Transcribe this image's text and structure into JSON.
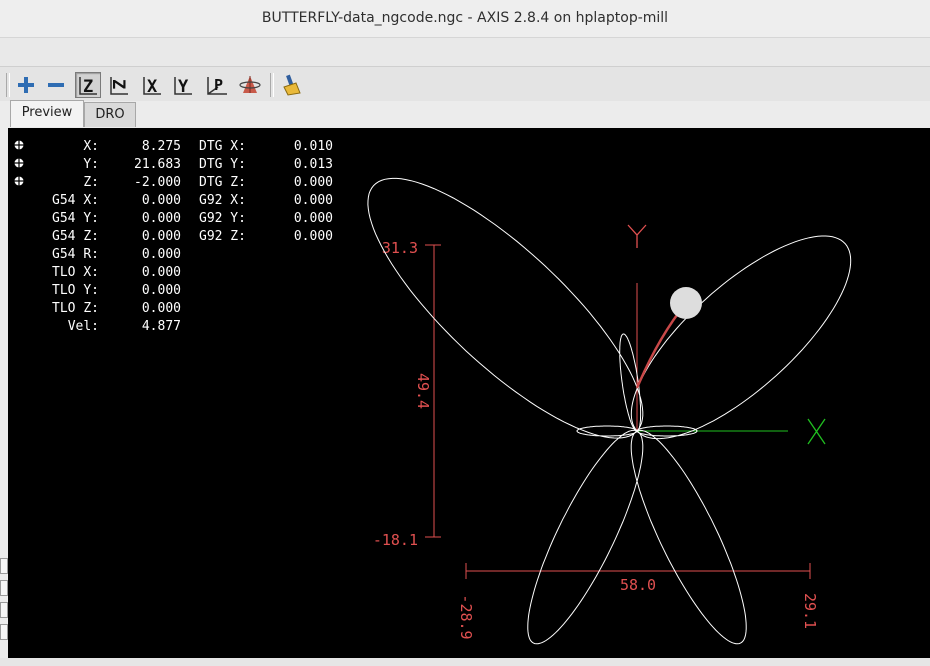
{
  "window": {
    "title": "BUTTERFLY-data_ngcode.ngc - AXIS 2.8.4 on hplaptop-mill"
  },
  "toolbar": {
    "buttons": [
      {
        "name": "zoom-in-icon"
      },
      {
        "name": "zoom-out-icon"
      },
      {
        "name": "view-z-icon",
        "label": "Z"
      },
      {
        "name": "view-z-rotated-icon",
        "label": "Z"
      },
      {
        "name": "view-x-icon",
        "label": "X"
      },
      {
        "name": "view-y-icon",
        "label": "Y"
      },
      {
        "name": "view-p-icon",
        "label": "P"
      },
      {
        "name": "rotate-view-icon"
      },
      {
        "name": "clear-backplot-icon"
      }
    ]
  },
  "tabs": [
    {
      "label": "Preview",
      "active": true
    },
    {
      "label": "DRO",
      "active": false
    }
  ],
  "dro": {
    "rows": [
      {
        "label": "X:",
        "value": "8.275",
        "label2": "DTG X:",
        "value2": "0.010",
        "homed": true
      },
      {
        "label": "Y:",
        "value": "21.683",
        "label2": "DTG Y:",
        "value2": "0.013",
        "homed": true
      },
      {
        "label": "Z:",
        "value": "-2.000",
        "label2": "DTG Z:",
        "value2": "0.000",
        "homed": true
      },
      {
        "label": "G54 X:",
        "value": "0.000",
        "label2": "G92 X:",
        "value2": "0.000"
      },
      {
        "label": "G54 Y:",
        "value": "0.000",
        "label2": "G92 Y:",
        "value2": "0.000"
      },
      {
        "label": "G54 Z:",
        "value": "0.000",
        "label2": "G92 Z:",
        "value2": "0.000"
      },
      {
        "label": "G54 R:",
        "value": "0.000"
      },
      {
        "label": "TLO X:",
        "value": "0.000"
      },
      {
        "label": "TLO Y:",
        "value": "0.000"
      },
      {
        "label": "TLO Z:",
        "value": "0.000"
      },
      {
        "label": "Vel:",
        "value": "4.877"
      }
    ]
  },
  "preview": {
    "axis_y_label": "Y",
    "axis_x_label": "X",
    "y_extent_top": "31.3",
    "y_extent_length": "49.4",
    "y_extent_bottom": "-18.1",
    "x_extent_left": "-28.9",
    "x_extent_length": "58.0",
    "x_extent_right": "29.1",
    "colors": {
      "background": "#000000",
      "toolpath": "#ffffff",
      "dimension": "#e05050",
      "x_axis": "#20c020",
      "y_axis": "#e05050",
      "traversed_path": "#c84848",
      "tool": "#dddddd"
    }
  }
}
